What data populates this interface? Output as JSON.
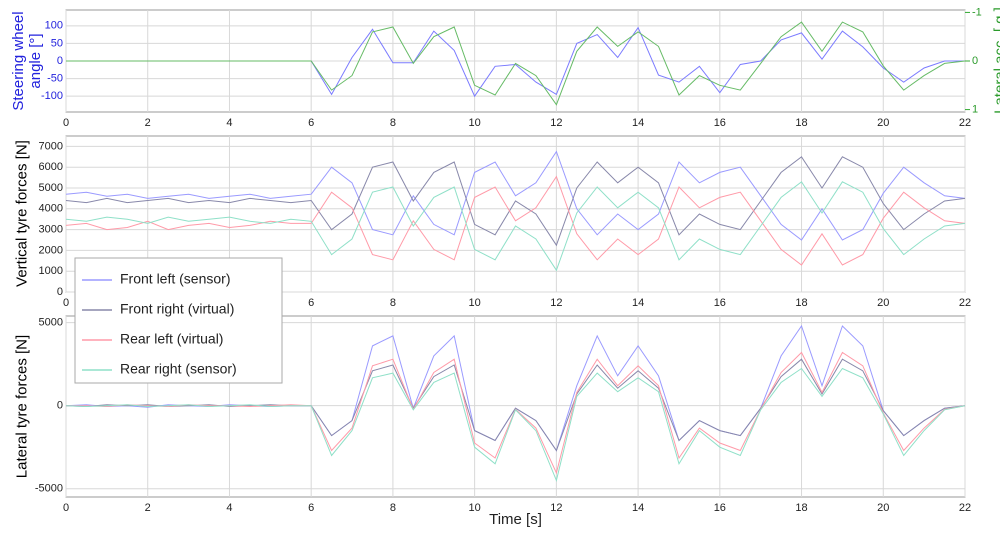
{
  "chart_data": [
    {
      "type": "line",
      "ylabel": "Steering wheel angle [°]",
      "y2label": "Lateral acc. [ g ]",
      "xlim": [
        0,
        22
      ],
      "xticks": [
        0,
        2,
        4,
        6,
        8,
        10,
        12,
        14,
        16,
        18,
        20,
        22
      ],
      "ylim": [
        -145,
        145
      ],
      "yticks": [
        -100,
        -50,
        0,
        50,
        100
      ],
      "y2lim": [
        -1.05,
        1.05
      ],
      "y2ticks": [
        -1,
        0,
        1
      ],
      "y2_reversed": true,
      "grid": true,
      "x": [
        0,
        0.5,
        1,
        1.5,
        2,
        2.5,
        3,
        3.5,
        4,
        4.5,
        5,
        5.5,
        6,
        6.5,
        7,
        7.5,
        8,
        8.5,
        9,
        9.5,
        10,
        10.5,
        11,
        11.5,
        12,
        12.5,
        13,
        13.5,
        14,
        14.5,
        15,
        15.5,
        16,
        16.5,
        17,
        17.5,
        18,
        18.5,
        19,
        19.5,
        20,
        20.5,
        21,
        21.5,
        22
      ],
      "series": [
        {
          "color": "#7b7bff",
          "values": [
            0,
            0,
            0,
            0,
            0,
            0,
            0,
            0,
            0,
            0,
            0,
            0,
            0,
            -95,
            10,
            90,
            -5,
            -5,
            85,
            30,
            -100,
            -15,
            -10,
            -60,
            -95,
            50,
            75,
            10,
            95,
            -40,
            -60,
            -15,
            -90,
            -10,
            0,
            60,
            80,
            5,
            85,
            40,
            -20,
            -60,
            -20,
            0,
            0
          ]
        },
        {
          "color": "#66bb66",
          "axis": "y2",
          "values": [
            0,
            0,
            0,
            0,
            0,
            0,
            0,
            0,
            0,
            0,
            0,
            0,
            0,
            0.6,
            0.3,
            -0.6,
            -0.7,
            0.05,
            -0.5,
            -0.7,
            0.5,
            0.7,
            0.05,
            0.3,
            0.9,
            -0.2,
            -0.7,
            -0.3,
            -0.6,
            -0.3,
            0.7,
            0.3,
            0.5,
            0.6,
            0.05,
            -0.5,
            -0.8,
            -0.2,
            -0.8,
            -0.6,
            0.1,
            0.6,
            0.3,
            0.05,
            0
          ]
        }
      ]
    },
    {
      "type": "line",
      "ylabel": "Vertical tyre forces [N]",
      "xlim": [
        0,
        22
      ],
      "xticks": [
        0,
        2,
        4,
        6,
        8,
        10,
        12,
        14,
        16,
        18,
        20,
        22
      ],
      "ylim": [
        0,
        7500
      ],
      "yticks": [
        0,
        1000,
        2000,
        3000,
        4000,
        5000,
        6000,
        7000
      ],
      "grid": true,
      "x": [
        0,
        0.5,
        1,
        1.5,
        2,
        2.5,
        3,
        3.5,
        4,
        4.5,
        5,
        5.5,
        6,
        6.5,
        7,
        7.5,
        8,
        8.5,
        9,
        9.5,
        10,
        10.5,
        11,
        11.5,
        12,
        12.5,
        13,
        13.5,
        14,
        14.5,
        15,
        15.5,
        16,
        16.5,
        17,
        17.5,
        18,
        18.5,
        19,
        19.5,
        20,
        20.5,
        21,
        21.5,
        22
      ],
      "series": [
        {
          "color": "#9a9aff",
          "values": [
            4700,
            4800,
            4600,
            4700,
            4500,
            4600,
            4700,
            4500,
            4600,
            4700,
            4500,
            4600,
            4700,
            6000,
            5250,
            3000,
            2750,
            4625,
            3250,
            2750,
            5750,
            6250,
            4625,
            5250,
            6750,
            4000,
            2750,
            3750,
            3000,
            3750,
            6250,
            5250,
            5750,
            6000,
            4625,
            3250,
            2500,
            4000,
            2500,
            3000,
            4750,
            6000,
            5250,
            4625,
            4500
          ]
        },
        {
          "color": "#8888aa",
          "values": [
            4400,
            4300,
            4500,
            4300,
            4400,
            4500,
            4300,
            4400,
            4300,
            4500,
            4400,
            4300,
            4400,
            3000,
            3750,
            6000,
            6250,
            4375,
            5750,
            6250,
            3250,
            2750,
            4375,
            3750,
            2250,
            5000,
            6250,
            5250,
            6000,
            5250,
            2750,
            3750,
            3250,
            3000,
            4375,
            5750,
            6500,
            5000,
            6500,
            6000,
            4250,
            3000,
            3750,
            4375,
            4500
          ]
        },
        {
          "color": "#ff9aa8",
          "values": [
            3200,
            3300,
            3000,
            3100,
            3400,
            3000,
            3200,
            3300,
            3100,
            3200,
            3400,
            3300,
            3300,
            4800,
            4050,
            1800,
            1550,
            3425,
            2050,
            1550,
            4550,
            5050,
            3425,
            4050,
            5550,
            2800,
            1550,
            2550,
            1800,
            2550,
            5050,
            4050,
            4550,
            4800,
            3425,
            2050,
            1300,
            2800,
            1300,
            1800,
            3550,
            4800,
            4050,
            3425,
            3300
          ]
        },
        {
          "color": "#8fe0c8",
          "values": [
            3500,
            3400,
            3600,
            3500,
            3300,
            3600,
            3400,
            3500,
            3600,
            3400,
            3300,
            3500,
            3400,
            1800,
            2550,
            4800,
            5050,
            3175,
            4550,
            5050,
            2050,
            1550,
            3175,
            2550,
            1050,
            3800,
            5050,
            4050,
            4800,
            4050,
            1550,
            2550,
            2050,
            1800,
            3175,
            4550,
            5300,
            3800,
            5300,
            4800,
            3050,
            1800,
            2550,
            3175,
            3300
          ]
        }
      ]
    },
    {
      "type": "line",
      "ylabel": "Lateral tyre forces [N]",
      "xlabel": "Time [s]",
      "xlim": [
        0,
        22
      ],
      "xticks": [
        0,
        2,
        4,
        6,
        8,
        10,
        12,
        14,
        16,
        18,
        20,
        22
      ],
      "ylim": [
        -5500,
        5400
      ],
      "yticks": [
        -5000,
        0,
        5000
      ],
      "grid": true,
      "x": [
        0,
        0.5,
        1,
        1.5,
        2,
        2.5,
        3,
        3.5,
        4,
        4.5,
        5,
        5.5,
        6,
        6.5,
        7,
        7.5,
        8,
        8.5,
        9,
        9.5,
        10,
        10.5,
        11,
        11.5,
        12,
        12.5,
        13,
        13.5,
        14,
        14.5,
        15,
        15.5,
        16,
        16.5,
        17,
        17.5,
        18,
        18.5,
        19,
        19.5,
        20,
        20.5,
        21,
        21.5,
        22
      ],
      "series": [
        {
          "name": "Front left (sensor)",
          "color": "#9a9aff",
          "values": [
            0,
            50,
            -50,
            0,
            -100,
            50,
            0,
            -50,
            50,
            0,
            -50,
            0,
            0,
            -1800,
            -900,
            3600,
            4200,
            -150,
            3000,
            4200,
            -1500,
            -2100,
            -150,
            -900,
            -2700,
            1200,
            4200,
            1800,
            3600,
            1800,
            -2100,
            -900,
            -1500,
            -1800,
            -150,
            3000,
            4800,
            1200,
            4800,
            3600,
            -300,
            -1800,
            -900,
            -150,
            0
          ]
        },
        {
          "name": "Front right (virtual)",
          "color": "#8888aa",
          "values": [
            0,
            -50,
            50,
            0,
            50,
            -50,
            0,
            50,
            -50,
            0,
            50,
            0,
            0,
            -1800,
            -900,
            2100,
            2450,
            -150,
            1750,
            2450,
            -1500,
            -2100,
            -150,
            -900,
            -2700,
            700,
            2450,
            1050,
            2100,
            1050,
            -2100,
            -900,
            -1500,
            -1800,
            -150,
            1750,
            2800,
            700,
            2800,
            2100,
            -300,
            -1800,
            -900,
            -150,
            0
          ]
        },
        {
          "name": "Rear left (virtual)",
          "color": "#ff9aa8",
          "values": [
            0,
            0,
            -50,
            50,
            0,
            -50,
            50,
            0,
            0,
            -50,
            0,
            50,
            0,
            -2700,
            -1350,
            2400,
            2800,
            -225,
            2000,
            2800,
            -2250,
            -3150,
            -225,
            -1350,
            -4050,
            800,
            2800,
            1200,
            2400,
            1200,
            -3150,
            -1350,
            -2250,
            -2700,
            -225,
            2000,
            3200,
            800,
            3200,
            2400,
            -450,
            -2700,
            -1350,
            -225,
            0
          ]
        },
        {
          "name": "Rear right (sensor)",
          "color": "#8fe0c8",
          "values": [
            0,
            -50,
            0,
            50,
            -50,
            0,
            50,
            -50,
            0,
            50,
            -50,
            0,
            0,
            -3000,
            -1500,
            1680,
            1960,
            -250,
            1400,
            1960,
            -2500,
            -3500,
            -250,
            -1500,
            -4500,
            560,
            1960,
            840,
            1680,
            840,
            -3500,
            -1500,
            -2500,
            -3000,
            -250,
            1400,
            2240,
            560,
            2240,
            1680,
            -500,
            -3000,
            -1500,
            -250,
            0
          ]
        }
      ]
    }
  ]
}
